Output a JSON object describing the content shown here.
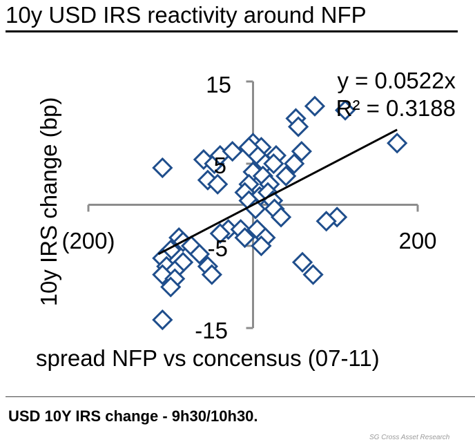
{
  "title": "10y USD IRS reactivity around NFP",
  "footer": "USD 10Y IRS change - 9h30/10h30.",
  "credit": "SG Cross Asset Research",
  "chart_data": {
    "type": "scatter",
    "xlabel": "spread NFP vs concensus (07-11)",
    "ylabel": "10y IRS change (bp)",
    "xlim": [
      -200,
      200
    ],
    "ylim": [
      -15,
      15
    ],
    "x_ticks": [
      -200,
      200
    ],
    "x_tick_labels": [
      "(200)",
      "200"
    ],
    "y_ticks": [
      15,
      5,
      -5,
      -15
    ],
    "y_tick_labels": [
      "15",
      "5",
      "-5",
      "-15"
    ],
    "grid": false,
    "marker": "diamond-open",
    "color": "#1f4e8c",
    "trendline": {
      "slope": 0.0522,
      "x_range": [
        -115,
        175
      ],
      "color": "#000000"
    },
    "equation": "y = 0.0522x",
    "r_squared": "R² = 0.3188",
    "points": [
      {
        "x": -110,
        "y": 4.5
      },
      {
        "x": 75,
        "y": 12
      },
      {
        "x": 112,
        "y": 11.5
      },
      {
        "x": 52,
        "y": 10.5
      },
      {
        "x": 55,
        "y": 9.5
      },
      {
        "x": 175,
        "y": 7.5
      },
      {
        "x": 59,
        "y": 6.5
      },
      {
        "x": -60,
        "y": 5.5
      },
      {
        "x": -47,
        "y": 5.0
      },
      {
        "x": -40,
        "y": 6.0
      },
      {
        "x": -25,
        "y": 6.5
      },
      {
        "x": 0,
        "y": 7.5
      },
      {
        "x": 10,
        "y": 7.0
      },
      {
        "x": 5,
        "y": 6.0
      },
      {
        "x": 15,
        "y": 5.0
      },
      {
        "x": 28,
        "y": 6.0
      },
      {
        "x": 25,
        "y": 5.0
      },
      {
        "x": 50,
        "y": 5.0
      },
      {
        "x": 0,
        "y": 4.0
      },
      {
        "x": 12,
        "y": 3.5
      },
      {
        "x": 20,
        "y": 2.5
      },
      {
        "x": -55,
        "y": 3.0
      },
      {
        "x": -43,
        "y": 2.5
      },
      {
        "x": -5,
        "y": 2.5
      },
      {
        "x": -10,
        "y": 1.5
      },
      {
        "x": 8,
        "y": 1.0
      },
      {
        "x": 18,
        "y": 1.5
      },
      {
        "x": 24,
        "y": 0.5
      },
      {
        "x": 26,
        "y": -0.5
      },
      {
        "x": -5,
        "y": 0.5
      },
      {
        "x": 3,
        "y": -0.5
      },
      {
        "x": 102,
        "y": -1.5
      },
      {
        "x": 89,
        "y": -2.0
      },
      {
        "x": -30,
        "y": -3.0
      },
      {
        "x": -40,
        "y": -3.5
      },
      {
        "x": -15,
        "y": -3.0
      },
      {
        "x": -10,
        "y": -4.0
      },
      {
        "x": 5,
        "y": -3.0
      },
      {
        "x": 15,
        "y": -4.0
      },
      {
        "x": 10,
        "y": -5.0
      },
      {
        "x": -90,
        "y": -4.0
      },
      {
        "x": -85,
        "y": -4.5
      },
      {
        "x": -75,
        "y": -5.0
      },
      {
        "x": -100,
        "y": -5.5
      },
      {
        "x": -65,
        "y": -6.0
      },
      {
        "x": -110,
        "y": -6.5
      },
      {
        "x": -85,
        "y": -7.0
      },
      {
        "x": -105,
        "y": -7.5
      },
      {
        "x": -95,
        "y": -8.0
      },
      {
        "x": -55,
        "y": -7.5
      },
      {
        "x": -110,
        "y": -8.5
      },
      {
        "x": -50,
        "y": -8.5
      },
      {
        "x": -95,
        "y": -9.0
      },
      {
        "x": -100,
        "y": -10.0
      },
      {
        "x": 60,
        "y": -7.0
      },
      {
        "x": 73,
        "y": -8.5
      },
      {
        "x": -110,
        "y": -14.0
      },
      {
        "x": -5,
        "y": 7.0
      },
      {
        "x": 40,
        "y": 3.5
      },
      {
        "x": 34,
        "y": -1.5
      }
    ]
  }
}
